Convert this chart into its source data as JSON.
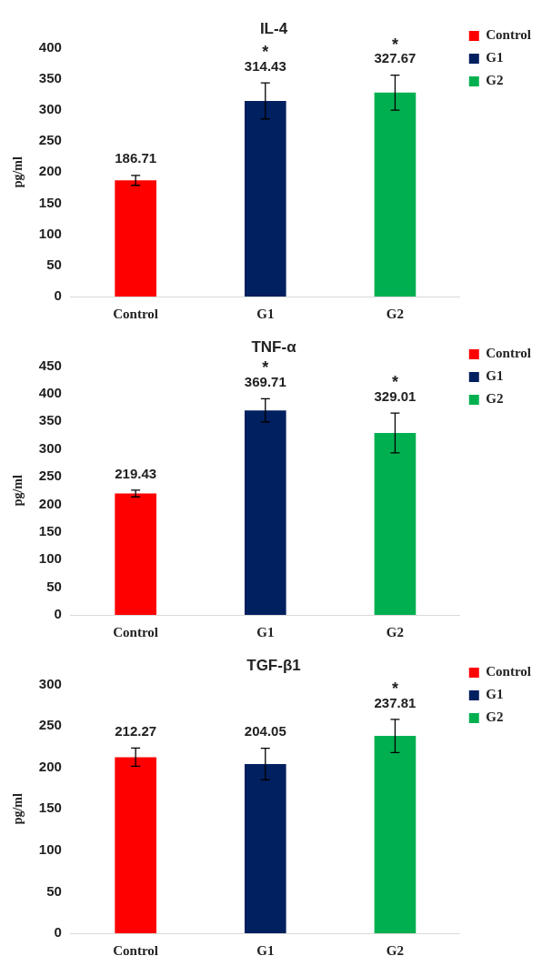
{
  "chart_data": [
    {
      "type": "bar",
      "title": "IL-4",
      "ylabel": "pg/ml",
      "categories": [
        "Control",
        "G1",
        "G2"
      ],
      "ylim": [
        0,
        400
      ],
      "yticks": [
        0,
        50,
        100,
        150,
        200,
        250,
        300,
        350,
        400
      ],
      "grid": false,
      "legend": "right",
      "data_labels": true,
      "series": [
        {
          "name": "Control",
          "color": "#ff0000",
          "values": [
            186.71,
            null,
            null
          ],
          "errors": [
            8,
            null,
            null
          ]
        },
        {
          "name": "G1",
          "color": "#002060",
          "values": [
            null,
            314.43,
            null
          ],
          "errors": [
            null,
            29,
            null
          ]
        },
        {
          "name": "G2",
          "color": "#00b050",
          "values": [
            null,
            null,
            327.67
          ],
          "errors": [
            null,
            null,
            28
          ]
        }
      ],
      "annotations": [
        {
          "text": "*",
          "x": "G1",
          "y": 314.43
        },
        {
          "text": "*",
          "x": "G2",
          "y": 327.67
        }
      ]
    },
    {
      "type": "bar",
      "title": "TNF-α",
      "ylabel": "pg/ml",
      "categories": [
        "Control",
        "G1",
        "G2"
      ],
      "ylim": [
        0,
        450
      ],
      "yticks": [
        0,
        50,
        100,
        150,
        200,
        250,
        300,
        350,
        400,
        450
      ],
      "grid": false,
      "legend": "right",
      "data_labels": true,
      "series": [
        {
          "name": "Control",
          "color": "#ff0000",
          "values": [
            219.43,
            null,
            null
          ],
          "errors": [
            6,
            null,
            null
          ]
        },
        {
          "name": "G1",
          "color": "#002060",
          "values": [
            null,
            369.71,
            null
          ],
          "errors": [
            null,
            21,
            null
          ]
        },
        {
          "name": "G2",
          "color": "#00b050",
          "values": [
            null,
            null,
            329.01
          ],
          "errors": [
            null,
            null,
            36
          ]
        }
      ],
      "annotations": [
        {
          "text": "*",
          "x": "G1",
          "y": 369.71
        },
        {
          "text": "*",
          "x": "G2",
          "y": 329.01
        }
      ]
    },
    {
      "type": "bar",
      "title": "TGF-β1",
      "ylabel": "pg/ml",
      "categories": [
        "Control",
        "G1",
        "G2"
      ],
      "ylim": [
        0,
        300
      ],
      "yticks": [
        0,
        50,
        100,
        150,
        200,
        250,
        300
      ],
      "grid": false,
      "legend": "right",
      "data_labels": true,
      "series": [
        {
          "name": "Control",
          "color": "#ff0000",
          "values": [
            212.27,
            null,
            null
          ],
          "errors": [
            11,
            null,
            null
          ]
        },
        {
          "name": "G1",
          "color": "#002060",
          "values": [
            null,
            204.05,
            null
          ],
          "errors": [
            null,
            19,
            null
          ]
        },
        {
          "name": "G2",
          "color": "#00b050",
          "values": [
            null,
            null,
            237.81
          ],
          "errors": [
            null,
            null,
            20
          ]
        }
      ],
      "annotations": [
        {
          "text": "*",
          "x": "G2",
          "y": 237.81
        }
      ]
    }
  ]
}
